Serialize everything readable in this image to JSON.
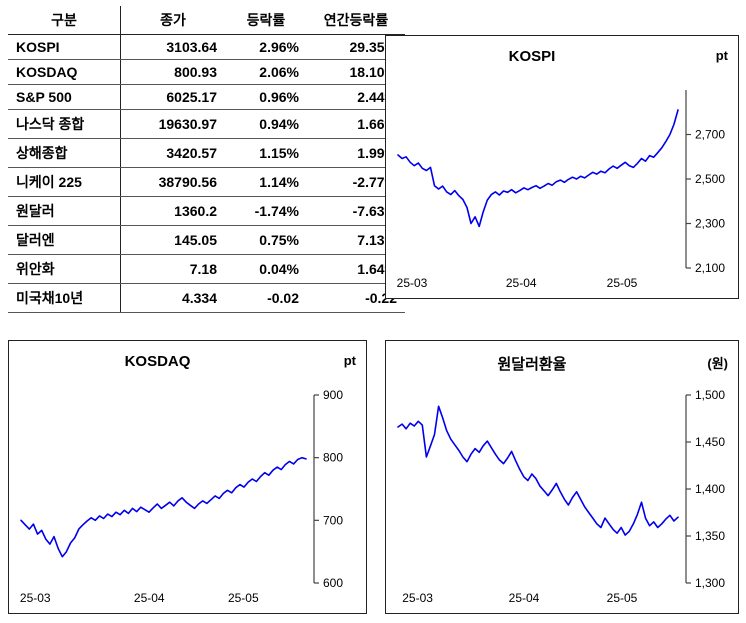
{
  "accent": {
    "line_color": "#0000EE",
    "axis_color": "#444444"
  },
  "table": {
    "headers": [
      "구분",
      "종가",
      "등락률",
      "연간등락률"
    ],
    "rows": [
      {
        "name": "KOSPI",
        "close": "3103.64",
        "change": "2.96%",
        "ytd": "29.35%"
      },
      {
        "name": "KOSDAQ",
        "close": "800.93",
        "change": "2.06%",
        "ytd": "18.10%"
      },
      {
        "name": "S&P 500",
        "close": "6025.17",
        "change": "0.96%",
        "ytd": "2.44%"
      },
      {
        "name": "나스닥 종합",
        "close": "19630.97",
        "change": "0.94%",
        "ytd": "1.66%"
      },
      {
        "name": "상해종합",
        "close": "3420.57",
        "change": "1.15%",
        "ytd": "1.99%"
      },
      {
        "name": "니케이 225",
        "close": "38790.56",
        "change": "1.14%",
        "ytd": "-2.77%"
      },
      {
        "name": "원달러",
        "close": "1360.2",
        "change": "-1.74%",
        "ytd": "-7.63%"
      },
      {
        "name": "달러엔",
        "close": "145.05",
        "change": "0.75%",
        "ytd": "7.13%"
      },
      {
        "name": "위안화",
        "close": "7.18",
        "change": "0.04%",
        "ytd": "1.64%"
      },
      {
        "name": "미국채10년",
        "close": "4.334",
        "change": "-0.02",
        "ytd": "-0.22"
      }
    ]
  },
  "chart_data": [
    {
      "id": "kospi",
      "type": "line",
      "title": "KOSPI",
      "unit": "pt",
      "line_color": "#0000EE",
      "ylim": [
        2100,
        2900
      ],
      "y_ticks": [
        {
          "value": 2700,
          "label": "2,700"
        },
        {
          "value": 2500,
          "label": "2,500"
        },
        {
          "value": 2300,
          "label": "2,300"
        },
        {
          "value": 2100,
          "label": "2,100"
        }
      ],
      "x_ticks": [
        {
          "pos": 0.05,
          "label": "25-03"
        },
        {
          "pos": 0.44,
          "label": "25-04"
        },
        {
          "pos": 0.8,
          "label": "25-05"
        }
      ],
      "values": [
        2608,
        2592,
        2600,
        2575,
        2560,
        2572,
        2548,
        2538,
        2552,
        2470,
        2455,
        2468,
        2442,
        2430,
        2448,
        2425,
        2408,
        2372,
        2300,
        2330,
        2287,
        2352,
        2405,
        2430,
        2442,
        2428,
        2446,
        2440,
        2452,
        2438,
        2448,
        2460,
        2452,
        2462,
        2470,
        2458,
        2468,
        2480,
        2472,
        2488,
        2495,
        2485,
        2498,
        2508,
        2500,
        2512,
        2505,
        2518,
        2530,
        2522,
        2535,
        2528,
        2545,
        2558,
        2548,
        2562,
        2575,
        2560,
        2552,
        2570,
        2592,
        2580,
        2605,
        2598,
        2618,
        2640,
        2668,
        2700,
        2745,
        2810
      ]
    },
    {
      "id": "kosdaq",
      "type": "line",
      "title": "KOSDAQ",
      "unit": "pt",
      "line_color": "#0000EE",
      "ylim": [
        600,
        900
      ],
      "y_ticks": [
        {
          "value": 900,
          "label": "900"
        },
        {
          "value": 800,
          "label": "800"
        },
        {
          "value": 700,
          "label": "700"
        },
        {
          "value": 600,
          "label": "600"
        }
      ],
      "x_ticks": [
        {
          "pos": 0.05,
          "label": "25-03"
        },
        {
          "pos": 0.45,
          "label": "25-04"
        },
        {
          "pos": 0.78,
          "label": "25-05"
        }
      ],
      "values": [
        700,
        693,
        686,
        694,
        678,
        684,
        670,
        662,
        674,
        655,
        642,
        650,
        664,
        672,
        686,
        693,
        699,
        704,
        700,
        707,
        703,
        710,
        706,
        713,
        709,
        716,
        711,
        719,
        714,
        721,
        717,
        713,
        720,
        726,
        719,
        724,
        729,
        723,
        731,
        736,
        729,
        724,
        719,
        726,
        731,
        727,
        733,
        739,
        735,
        743,
        748,
        744,
        752,
        757,
        753,
        761,
        766,
        762,
        770,
        776,
        772,
        780,
        785,
        781,
        789,
        794,
        790,
        797,
        800,
        798
      ]
    },
    {
      "id": "won",
      "type": "line",
      "title": "원달러환율",
      "unit": "(원)",
      "line_color": "#0000EE",
      "ylim": [
        1300,
        1500
      ],
      "y_ticks": [
        {
          "value": 1500,
          "label": "1,500"
        },
        {
          "value": 1450,
          "label": "1,450"
        },
        {
          "value": 1400,
          "label": "1,400"
        },
        {
          "value": 1350,
          "label": "1,350"
        },
        {
          "value": 1300,
          "label": "1,300"
        }
      ],
      "x_ticks": [
        {
          "pos": 0.07,
          "label": "25-03"
        },
        {
          "pos": 0.45,
          "label": "25-04"
        },
        {
          "pos": 0.8,
          "label": "25-05"
        }
      ],
      "values": [
        1466,
        1469,
        1464,
        1470,
        1467,
        1472,
        1468,
        1434,
        1446,
        1458,
        1488,
        1476,
        1462,
        1453,
        1447,
        1441,
        1434,
        1429,
        1437,
        1443,
        1439,
        1446,
        1451,
        1444,
        1437,
        1431,
        1427,
        1433,
        1440,
        1430,
        1421,
        1413,
        1409,
        1416,
        1411,
        1403,
        1398,
        1393,
        1399,
        1406,
        1397,
        1389,
        1383,
        1391,
        1397,
        1389,
        1381,
        1375,
        1369,
        1363,
        1359,
        1369,
        1363,
        1357,
        1353,
        1359,
        1351,
        1355,
        1363,
        1373,
        1386,
        1369,
        1361,
        1365,
        1359,
        1363,
        1368,
        1372,
        1366,
        1370
      ]
    }
  ]
}
